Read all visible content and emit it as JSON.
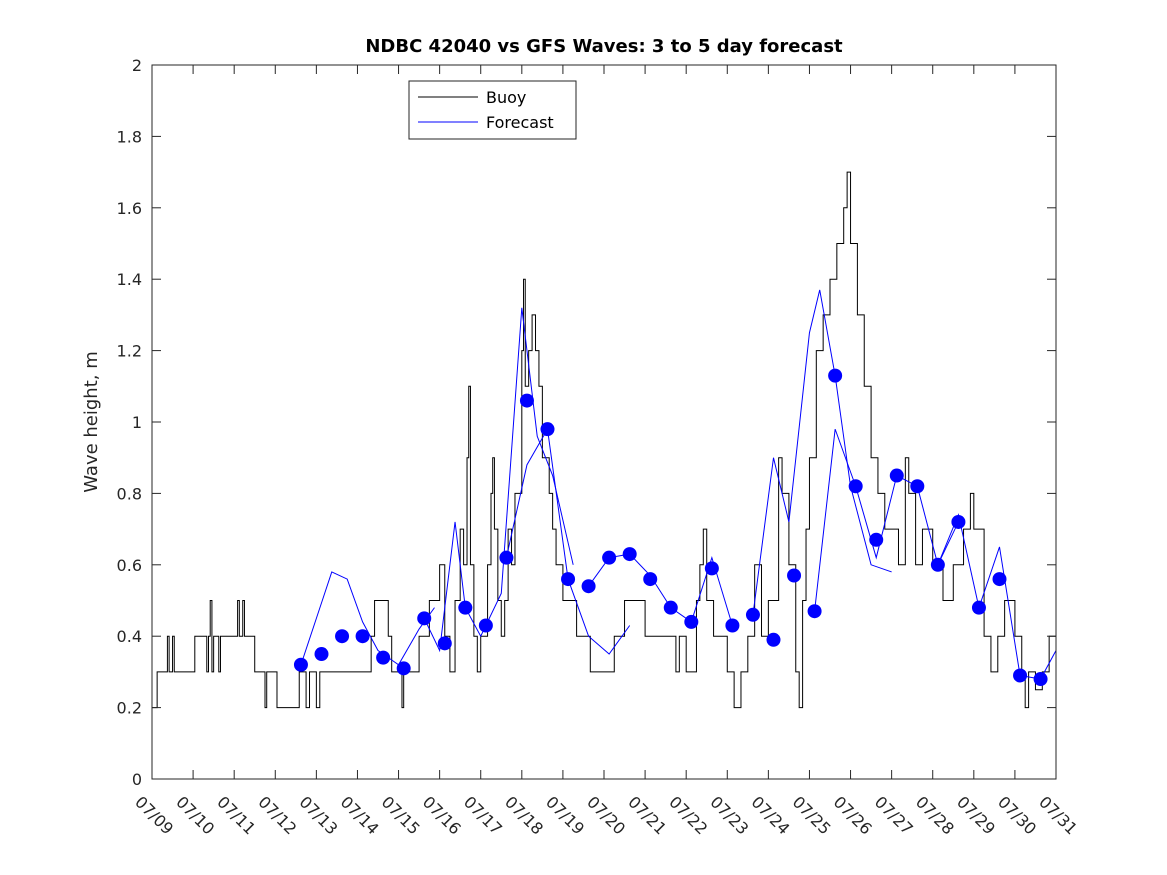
{
  "chart_data": {
    "type": "line",
    "title": "NDBC 42040 vs GFS Waves: 3 to 5 day forecast",
    "xlabel": "",
    "ylabel": "Wave height, m",
    "xlim": [
      "07/09",
      "07/31"
    ],
    "ylim": [
      0,
      2
    ],
    "grid": false,
    "legend_position": "top-left",
    "x_tick_labels": [
      "07/09",
      "07/10",
      "07/11",
      "07/12",
      "07/13",
      "07/14",
      "07/15",
      "07/16",
      "07/17",
      "07/18",
      "07/19",
      "07/20",
      "07/21",
      "07/22",
      "07/23",
      "07/24",
      "07/25",
      "07/26",
      "07/27",
      "07/28",
      "07/29",
      "07/30",
      "07/31"
    ],
    "y_ticks": [
      0,
      0.2,
      0.4,
      0.6,
      0.8,
      1,
      1.2,
      1.4,
      1.6,
      1.8,
      2
    ],
    "y_tick_labels": [
      "0",
      "0.2",
      "0.4",
      "0.6",
      "0.8",
      "1",
      "1.2",
      "1.4",
      "1.6",
      "1.8",
      "2"
    ],
    "colors": {
      "buoy": "#000000",
      "forecast": "#0000ff"
    },
    "series": [
      {
        "name": "Buoy",
        "style": "step-line",
        "color": "#000000",
        "points": [
          [
            "07/09 00:00",
            0.2
          ],
          [
            "07/09 03:00",
            0.3
          ],
          [
            "07/09 09:00",
            0.4
          ],
          [
            "07/09 10:00",
            0.3
          ],
          [
            "07/09 12:00",
            0.4
          ],
          [
            "07/09 13:00",
            0.3
          ],
          [
            "07/10 00:00",
            0.3
          ],
          [
            "07/10 01:00",
            0.4
          ],
          [
            "07/10 08:00",
            0.3
          ],
          [
            "07/10 09:00",
            0.4
          ],
          [
            "07/10 10:00",
            0.5
          ],
          [
            "07/10 11:00",
            0.3
          ],
          [
            "07/10 12:00",
            0.4
          ],
          [
            "07/10 15:00",
            0.3
          ],
          [
            "07/10 16:00",
            0.4
          ],
          [
            "07/11 00:00",
            0.4
          ],
          [
            "07/11 02:00",
            0.5
          ],
          [
            "07/11 03:00",
            0.4
          ],
          [
            "07/11 05:00",
            0.5
          ],
          [
            "07/11 06:00",
            0.4
          ],
          [
            "07/11 08:00",
            0.4
          ],
          [
            "07/11 12:00",
            0.3
          ],
          [
            "07/11 18:00",
            0.2
          ],
          [
            "07/11 19:00",
            0.3
          ],
          [
            "07/12 00:00",
            0.3
          ],
          [
            "07/12 01:00",
            0.2
          ],
          [
            "07/12 08:00",
            0.2
          ],
          [
            "07/12 12:00",
            0.2
          ],
          [
            "07/12 14:00",
            0.3
          ],
          [
            "07/12 18:00",
            0.2
          ],
          [
            "07/12 20:00",
            0.3
          ],
          [
            "07/13 00:00",
            0.2
          ],
          [
            "07/13 02:00",
            0.3
          ],
          [
            "07/13 12:00",
            0.3
          ],
          [
            "07/14 00:00",
            0.3
          ],
          [
            "07/14 08:00",
            0.4
          ],
          [
            "07/14 10:00",
            0.5
          ],
          [
            "07/14 18:00",
            0.4
          ],
          [
            "07/14 20:00",
            0.3
          ],
          [
            "07/15 00:00",
            0.3
          ],
          [
            "07/15 02:00",
            0.2
          ],
          [
            "07/15 03:00",
            0.3
          ],
          [
            "07/15 12:00",
            0.4
          ],
          [
            "07/15 18:00",
            0.5
          ],
          [
            "07/16 00:00",
            0.6
          ],
          [
            "07/16 03:00",
            0.4
          ],
          [
            "07/16 06:00",
            0.3
          ],
          [
            "07/16 09:00",
            0.5
          ],
          [
            "07/16 12:00",
            0.7
          ],
          [
            "07/16 14:00",
            0.6
          ],
          [
            "07/16 16:00",
            0.9
          ],
          [
            "07/16 17:00",
            1.1
          ],
          [
            "07/16 18:00",
            0.6
          ],
          [
            "07/16 20:00",
            0.4
          ],
          [
            "07/16 22:00",
            0.3
          ],
          [
            "07/17 00:00",
            0.4
          ],
          [
            "07/17 04:00",
            0.6
          ],
          [
            "07/17 06:00",
            0.8
          ],
          [
            "07/17 07:00",
            0.9
          ],
          [
            "07/17 08:00",
            0.7
          ],
          [
            "07/17 10:00",
            0.5
          ],
          [
            "07/17 12:00",
            0.4
          ],
          [
            "07/17 14:00",
            0.5
          ],
          [
            "07/17 16:00",
            0.7
          ],
          [
            "07/17 18:00",
            0.6
          ],
          [
            "07/17 20:00",
            0.8
          ],
          [
            "07/18 00:00",
            1.2
          ],
          [
            "07/18 01:00",
            1.4
          ],
          [
            "07/18 02:00",
            1.1
          ],
          [
            "07/18 04:00",
            1.2
          ],
          [
            "07/18 06:00",
            1.3
          ],
          [
            "07/18 08:00",
            1.2
          ],
          [
            "07/18 10:00",
            1.1
          ],
          [
            "07/18 12:00",
            0.9
          ],
          [
            "07/18 16:00",
            0.8
          ],
          [
            "07/18 18:00",
            0.7
          ],
          [
            "07/18 20:00",
            0.6
          ],
          [
            "07/19 00:00",
            0.5
          ],
          [
            "07/19 04:00",
            0.5
          ],
          [
            "07/19 08:00",
            0.4
          ],
          [
            "07/19 12:00",
            0.4
          ],
          [
            "07/19 16:00",
            0.3
          ],
          [
            "07/20 00:00",
            0.3
          ],
          [
            "07/20 06:00",
            0.4
          ],
          [
            "07/20 12:00",
            0.5
          ],
          [
            "07/20 18:00",
            0.5
          ],
          [
            "07/21 00:00",
            0.4
          ],
          [
            "07/21 06:00",
            0.4
          ],
          [
            "07/21 12:00",
            0.4
          ],
          [
            "07/21 18:00",
            0.3
          ],
          [
            "07/21 20:00",
            0.4
          ],
          [
            "07/22 00:00",
            0.3
          ],
          [
            "07/22 06:00",
            0.5
          ],
          [
            "07/22 08:00",
            0.6
          ],
          [
            "07/22 10:00",
            0.7
          ],
          [
            "07/22 12:00",
            0.5
          ],
          [
            "07/22 16:00",
            0.4
          ],
          [
            "07/23 00:00",
            0.3
          ],
          [
            "07/23 04:00",
            0.2
          ],
          [
            "07/23 08:00",
            0.3
          ],
          [
            "07/23 12:00",
            0.4
          ],
          [
            "07/23 16:00",
            0.6
          ],
          [
            "07/23 20:00",
            0.4
          ],
          [
            "07/24 00:00",
            0.5
          ],
          [
            "07/24 06:00",
            0.9
          ],
          [
            "07/24 08:00",
            0.8
          ],
          [
            "07/24 12:00",
            0.6
          ],
          [
            "07/24 16:00",
            0.3
          ],
          [
            "07/24 18:00",
            0.2
          ],
          [
            "07/24 20:00",
            0.5
          ],
          [
            "07/24 22:00",
            0.7
          ],
          [
            "07/25 00:00",
            0.9
          ],
          [
            "07/25 04:00",
            1.2
          ],
          [
            "07/25 08:00",
            1.3
          ],
          [
            "07/25 12:00",
            1.4
          ],
          [
            "07/25 16:00",
            1.5
          ],
          [
            "07/25 20:00",
            1.6
          ],
          [
            "07/25 22:00",
            1.7
          ],
          [
            "07/26 00:00",
            1.5
          ],
          [
            "07/26 04:00",
            1.3
          ],
          [
            "07/26 08:00",
            1.1
          ],
          [
            "07/26 12:00",
            0.9
          ],
          [
            "07/26 16:00",
            0.8
          ],
          [
            "07/26 20:00",
            0.7
          ],
          [
            "07/27 00:00",
            0.7
          ],
          [
            "07/27 04:00",
            0.6
          ],
          [
            "07/27 08:00",
            0.9
          ],
          [
            "07/27 10:00",
            0.8
          ],
          [
            "07/27 14:00",
            0.6
          ],
          [
            "07/27 18:00",
            0.7
          ],
          [
            "07/28 00:00",
            0.6
          ],
          [
            "07/28 06:00",
            0.5
          ],
          [
            "07/28 12:00",
            0.6
          ],
          [
            "07/28 18:00",
            0.7
          ],
          [
            "07/28 22:00",
            0.8
          ],
          [
            "07/29 00:00",
            0.7
          ],
          [
            "07/29 06:00",
            0.4
          ],
          [
            "07/29 10:00",
            0.3
          ],
          [
            "07/29 14:00",
            0.4
          ],
          [
            "07/29 18:00",
            0.5
          ],
          [
            "07/30 00:00",
            0.4
          ],
          [
            "07/30 04:00",
            0.3
          ],
          [
            "07/30 06:00",
            0.2
          ],
          [
            "07/30 08:00",
            0.3
          ],
          [
            "07/30 12:00",
            0.25
          ],
          [
            "07/30 16:00",
            0.3
          ],
          [
            "07/30 20:00",
            0.4
          ],
          [
            "07/31 00:00",
            0.4
          ]
        ]
      },
      {
        "name": "Forecast",
        "style": "lines-with-markers",
        "color": "#0000ff",
        "markers": [
          [
            "07/12 15:00",
            0.32
          ],
          [
            "07/13 03:00",
            0.35
          ],
          [
            "07/13 15:00",
            0.4
          ],
          [
            "07/14 03:00",
            0.4
          ],
          [
            "07/14 15:00",
            0.34
          ],
          [
            "07/15 03:00",
            0.31
          ],
          [
            "07/15 15:00",
            0.45
          ],
          [
            "07/16 03:00",
            0.38
          ],
          [
            "07/16 15:00",
            0.48
          ],
          [
            "07/17 03:00",
            0.43
          ],
          [
            "07/17 15:00",
            0.62
          ],
          [
            "07/18 03:00",
            1.06
          ],
          [
            "07/18 15:00",
            0.98
          ],
          [
            "07/19 03:00",
            0.56
          ],
          [
            "07/19 15:00",
            0.54
          ],
          [
            "07/20 03:00",
            0.62
          ],
          [
            "07/20 15:00",
            0.63
          ],
          [
            "07/21 03:00",
            0.56
          ],
          [
            "07/21 15:00",
            0.48
          ],
          [
            "07/22 03:00",
            0.44
          ],
          [
            "07/22 15:00",
            0.59
          ],
          [
            "07/23 03:00",
            0.43
          ],
          [
            "07/23 15:00",
            0.46
          ],
          [
            "07/24 03:00",
            0.39
          ],
          [
            "07/24 15:00",
            0.57
          ],
          [
            "07/25 03:00",
            0.47
          ],
          [
            "07/25 15:00",
            1.13
          ],
          [
            "07/26 03:00",
            0.82
          ],
          [
            "07/26 15:00",
            0.67
          ],
          [
            "07/27 03:00",
            0.85
          ],
          [
            "07/27 15:00",
            0.82
          ],
          [
            "07/28 03:00",
            0.6
          ],
          [
            "07/28 15:00",
            0.72
          ],
          [
            "07/29 03:00",
            0.48
          ],
          [
            "07/29 15:00",
            0.56
          ],
          [
            "07/30 03:00",
            0.29
          ],
          [
            "07/30 15:00",
            0.28
          ]
        ],
        "runs": [
          [
            [
              "07/12 15:00",
              0.32
            ],
            [
              "07/13 00:00",
              0.45
            ],
            [
              "07/13 09:00",
              0.58
            ],
            [
              "07/13 18:00",
              0.56
            ],
            [
              "07/14 03:00",
              0.44
            ],
            [
              "07/14 12:00",
              0.36
            ],
            [
              "07/15 00:00",
              0.32
            ],
            [
              "07/15 12:00",
              0.42
            ],
            [
              "07/15 21:00",
              0.48
            ]
          ],
          [
            [
              "07/15 15:00",
              0.45
            ],
            [
              "07/16 00:00",
              0.36
            ],
            [
              "07/16 09:00",
              0.72
            ],
            [
              "07/16 15:00",
              0.48
            ],
            [
              "07/17 00:00",
              0.4
            ],
            [
              "07/17 12:00",
              0.52
            ],
            [
              "07/18 00:00",
              1.32
            ],
            [
              "07/18 09:00",
              0.96
            ],
            [
              "07/18 18:00",
              0.85
            ],
            [
              "07/19 06:00",
              0.6
            ]
          ],
          [
            [
              "07/17 15:00",
              0.62
            ],
            [
              "07/18 03:00",
              0.88
            ],
            [
              "07/18 15:00",
              0.98
            ],
            [
              "07/19 03:00",
              0.56
            ],
            [
              "07/19 15:00",
              0.4
            ],
            [
              "07/20 03:00",
              0.35
            ],
            [
              "07/20 15:00",
              0.43
            ]
          ],
          [
            [
              "07/19 15:00",
              0.54
            ],
            [
              "07/20 03:00",
              0.62
            ],
            [
              "07/20 15:00",
              0.63
            ],
            [
              "07/21 03:00",
              0.57
            ],
            [
              "07/21 15:00",
              0.48
            ],
            [
              "07/22 03:00",
              0.44
            ],
            [
              "07/22 15:00",
              0.62
            ],
            [
              "07/23 03:00",
              0.43
            ]
          ],
          [
            [
              "07/23 15:00",
              0.46
            ],
            [
              "07/24 03:00",
              0.9
            ],
            [
              "07/24 12:00",
              0.72
            ],
            [
              "07/25 00:00",
              1.25
            ],
            [
              "07/25 06:00",
              1.37
            ],
            [
              "07/25 15:00",
              1.13
            ],
            [
              "07/26 00:00",
              0.82
            ],
            [
              "07/26 12:00",
              0.6
            ],
            [
              "07/27 00:00",
              0.58
            ]
          ],
          [
            [
              "07/25 03:00",
              0.47
            ],
            [
              "07/25 15:00",
              0.98
            ],
            [
              "07/26 03:00",
              0.82
            ],
            [
              "07/26 15:00",
              0.62
            ],
            [
              "07/27 03:00",
              0.85
            ],
            [
              "07/27 15:00",
              0.82
            ],
            [
              "07/28 03:00",
              0.6
            ],
            [
              "07/28 15:00",
              0.72
            ]
          ],
          [
            [
              "07/28 03:00",
              0.6
            ],
            [
              "07/28 15:00",
              0.74
            ],
            [
              "07/29 03:00",
              0.48
            ],
            [
              "07/29 15:00",
              0.65
            ],
            [
              "07/30 03:00",
              0.29
            ],
            [
              "07/30 15:00",
              0.28
            ],
            [
              "07/31 00:00",
              0.36
            ]
          ]
        ]
      }
    ]
  }
}
